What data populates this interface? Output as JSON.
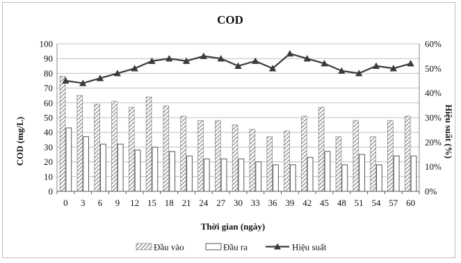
{
  "chart_data": {
    "type": "bar",
    "title": "COD",
    "xlabel": "Thời gian (ngày)",
    "ylabel": "COD (mg/L)",
    "y2label": "Hiệu suất (%)",
    "categories": [
      "0",
      "3",
      "6",
      "9",
      "12",
      "15",
      "18",
      "21",
      "24",
      "27",
      "30",
      "33",
      "36",
      "39",
      "42",
      "45",
      "48",
      "51",
      "54",
      "57",
      "60"
    ],
    "ylim": [
      0,
      100
    ],
    "yticks": [
      "0",
      "10",
      "20",
      "30",
      "40",
      "50",
      "60",
      "70",
      "80",
      "90",
      "100"
    ],
    "y2lim": [
      0,
      60
    ],
    "y2ticks": [
      "0%",
      "10%",
      "20%",
      "30%",
      "40%",
      "50%",
      "60%"
    ],
    "grid": true,
    "legend_position": "bottom",
    "series": [
      {
        "name": "Đầu vào",
        "kind": "bar",
        "fill": "hatched",
        "color": "#8c8c8c",
        "values": [
          78,
          65,
          59,
          61,
          57,
          64,
          58,
          51,
          48,
          48,
          45,
          42,
          37,
          41,
          51,
          57,
          37,
          48,
          37,
          48,
          51
        ]
      },
      {
        "name": "Đầu ra",
        "kind": "bar",
        "fill": "white",
        "color": "#555555",
        "values": [
          43,
          37,
          32,
          32,
          28,
          30,
          27,
          24,
          22,
          22,
          22,
          20,
          18,
          18,
          23,
          27,
          18,
          25,
          18,
          24,
          24
        ]
      },
      {
        "name": "Hiệu suất",
        "kind": "line",
        "axis": "right",
        "color": "#3a3a3a",
        "values": [
          45,
          44,
          46,
          48,
          50,
          53,
          54,
          53,
          55,
          54,
          51,
          53,
          50,
          56,
          54,
          52,
          49,
          48,
          51,
          50,
          52
        ]
      }
    ]
  }
}
